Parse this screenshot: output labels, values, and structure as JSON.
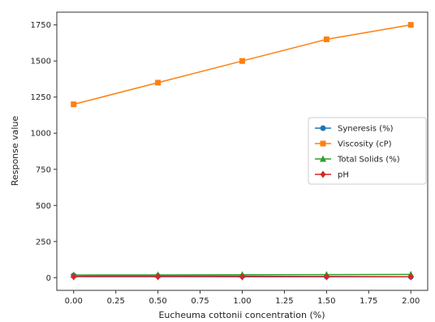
{
  "chart_data": {
    "type": "line",
    "x": [
      0.0,
      0.5,
      1.0,
      1.5,
      2.0
    ],
    "x_tick_labels": [
      "0.00",
      "0.25",
      "0.50",
      "0.75",
      "1.00",
      "1.25",
      "1.50",
      "1.75",
      "2.00"
    ],
    "x_ticks": [
      0.0,
      0.25,
      0.5,
      0.75,
      1.0,
      1.25,
      1.5,
      1.75,
      2.0
    ],
    "y_tick_labels": [
      "0",
      "250",
      "500",
      "750",
      "1000",
      "1250",
      "1500",
      "1750"
    ],
    "y_ticks": [
      0,
      250,
      500,
      750,
      1000,
      1250,
      1500,
      1750
    ],
    "xlabel": "Eucheuma cottonii concentration (%)",
    "ylabel": "Response value",
    "xlim": [
      -0.1,
      2.1
    ],
    "ylim": [
      -88,
      1838
    ],
    "grid": false,
    "legend_position": "center-right",
    "series": [
      {
        "name": "Syneresis (%)",
        "color": "#1f77b4",
        "marker": "circle",
        "values": [
          15,
          12,
          10,
          8,
          6
        ]
      },
      {
        "name": "Viscosity (cP)",
        "color": "#ff7f0e",
        "marker": "square",
        "values": [
          1200,
          1350,
          1500,
          1650,
          1750
        ]
      },
      {
        "name": "Total Solids (%)",
        "color": "#2ca02c",
        "marker": "triangle-up",
        "values": [
          18,
          19,
          20,
          21,
          22
        ]
      },
      {
        "name": "pH",
        "color": "#d62728",
        "marker": "diamond",
        "values": [
          6.6,
          6.5,
          6.4,
          6.3,
          6.2
        ]
      }
    ]
  }
}
